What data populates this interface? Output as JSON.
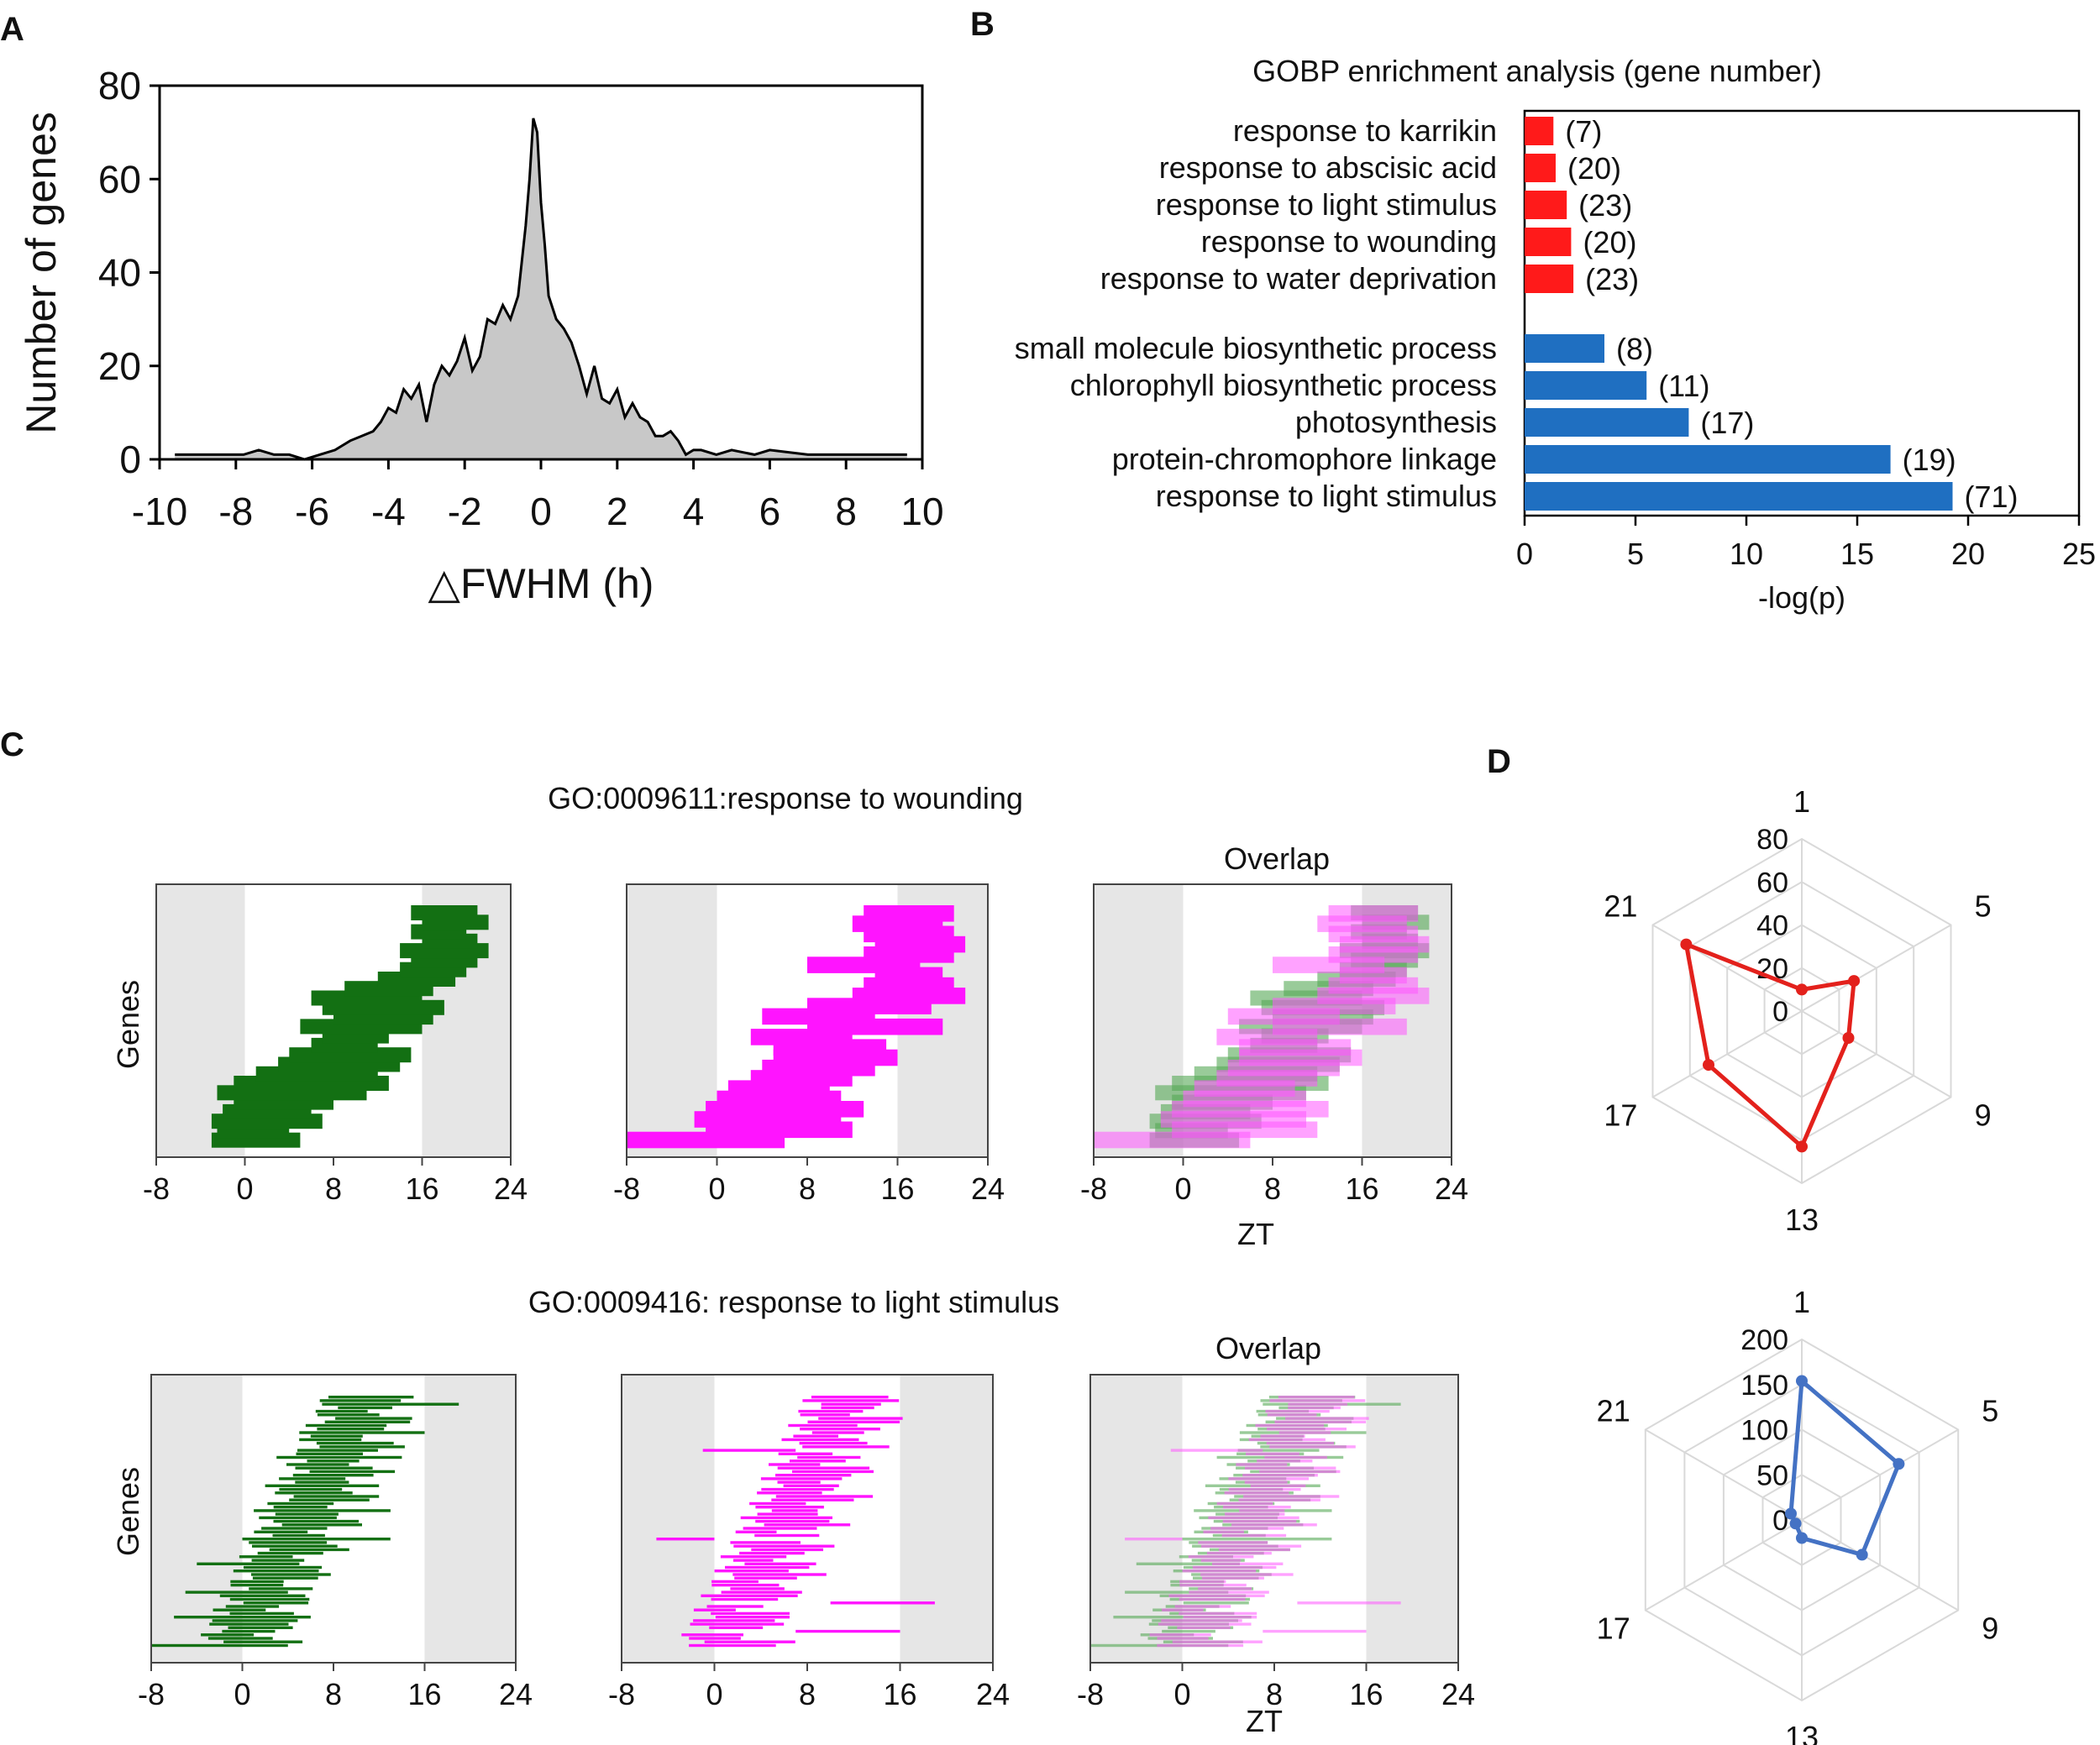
{
  "panels": {
    "A": "A",
    "B": "B",
    "C": "C",
    "D": "D"
  },
  "colors": {
    "red": "#ff1a1a",
    "blue": "#1f6fc1",
    "green": "#137013",
    "magenta": "#ff14ff",
    "overlap": "#7a5a7a",
    "shade": "#e6e6e6",
    "fill": "#c8c8c8",
    "radar_red": "#e3211c",
    "radar_blue": "#4472c4",
    "grid": "#d9d9d9"
  },
  "chart_data": [
    {
      "id": "A",
      "type": "area",
      "xlabel": "△FWHM (h)",
      "ylabel": "Number of genes",
      "xlim": [
        -10,
        10
      ],
      "ylim": [
        0,
        80
      ],
      "xticks": [
        "-10",
        "-8",
        "-6",
        "-4",
        "-2",
        "0",
        "2",
        "4",
        "6",
        "8",
        "10"
      ],
      "yticks": [
        "0",
        "20",
        "40",
        "60",
        "80"
      ],
      "x": [
        -9.6,
        -8.2,
        -7.8,
        -7.4,
        -7.0,
        -6.6,
        -6.2,
        -5.8,
        -5.4,
        -5.0,
        -4.7,
        -4.4,
        -4.2,
        -4.0,
        -3.8,
        -3.6,
        -3.4,
        -3.2,
        -3.0,
        -2.8,
        -2.6,
        -2.4,
        -2.2,
        -2.0,
        -1.8,
        -1.6,
        -1.4,
        -1.2,
        -1.0,
        -0.8,
        -0.6,
        -0.4,
        -0.3,
        -0.2,
        -0.1,
        0.0,
        0.1,
        0.2,
        0.4,
        0.6,
        0.8,
        1.0,
        1.2,
        1.4,
        1.6,
        1.8,
        2.0,
        2.2,
        2.4,
        2.6,
        2.8,
        3.0,
        3.2,
        3.4,
        3.6,
        3.8,
        4.0,
        4.2,
        4.6,
        5.0,
        5.6,
        6.0,
        7.0,
        7.5,
        8.0,
        8.5,
        9.0,
        9.6
      ],
      "y": [
        1,
        1,
        1,
        2,
        1,
        1,
        0,
        1,
        2,
        4,
        5,
        6,
        8,
        11,
        10,
        15,
        13,
        16,
        8,
        16,
        20,
        18,
        21,
        26,
        19,
        22,
        30,
        29,
        33,
        30,
        35,
        50,
        60,
        73,
        70,
        55,
        46,
        35,
        30,
        28,
        25,
        20,
        14,
        20,
        13,
        12,
        15,
        9,
        12,
        9,
        8,
        5,
        5,
        6,
        4,
        1,
        2,
        2,
        1,
        2,
        1,
        2,
        1,
        1,
        1,
        1,
        1,
        1
      ]
    },
    {
      "id": "B",
      "type": "bar",
      "title": "GOBP enrichment analysis  (gene number)",
      "xlabel": "-log(p)",
      "xlim": [
        0,
        25
      ],
      "xticks": [
        "0",
        "5",
        "10",
        "15",
        "20",
        "25"
      ],
      "series": [
        {
          "name": "red",
          "categories": [
            "response to karrikin",
            "response to abscisic acid",
            "response to light stimulus",
            "response to wounding",
            "response to water deprivation"
          ],
          "values": [
            1.3,
            1.4,
            1.9,
            2.1,
            2.2
          ],
          "labels": [
            "(7)",
            "(20)",
            "(23)",
            "(20)",
            "(23)"
          ]
        },
        {
          "name": "blue",
          "categories": [
            "small molecule biosynthetic process",
            "chlorophyll biosynthetic process",
            "photosynthesis",
            "protein-chromophore linkage",
            "response to light stimulus"
          ],
          "values": [
            3.6,
            5.5,
            7.4,
            16.5,
            19.3
          ],
          "labels": [
            "(8)",
            "(11)",
            "(17)",
            "(19)",
            "(71)"
          ]
        }
      ]
    },
    {
      "id": "C",
      "type": "bar",
      "rows": [
        {
          "title": "GO:0009611:response to wounding",
          "overlap_title": "Overlap",
          "genes": 20
        },
        {
          "title": "GO:0009416: response to light stimulus",
          "overlap_title": "Overlap",
          "genes": 71
        }
      ],
      "ylabel": "Genes",
      "xlabel": "ZT",
      "xlim": [
        -8,
        24
      ],
      "xticks": [
        "-8",
        "0",
        "8",
        "16",
        "24"
      ],
      "dark_periods": [
        [
          -8,
          0
        ],
        [
          16,
          24
        ]
      ],
      "bars_wounding_green": [
        [
          -3,
          5
        ],
        [
          -2.5,
          4
        ],
        [
          -3,
          7
        ],
        [
          -2,
          6
        ],
        [
          -1,
          8
        ],
        [
          -2.5,
          11
        ],
        [
          -1,
          13
        ],
        [
          1,
          12
        ],
        [
          3,
          14
        ],
        [
          4,
          15
        ],
        [
          6,
          12
        ],
        [
          7,
          13
        ],
        [
          5,
          16
        ],
        [
          8,
          17
        ],
        [
          7,
          18
        ],
        [
          6,
          16
        ],
        [
          9,
          17
        ],
        [
          12,
          19
        ],
        [
          14,
          20
        ],
        [
          15,
          21
        ],
        [
          14,
          22
        ],
        [
          16,
          21
        ],
        [
          15,
          20
        ],
        [
          16,
          22
        ],
        [
          15,
          21
        ]
      ],
      "bars_wounding_magenta": [
        [
          -8,
          6
        ],
        [
          -1,
          12
        ],
        [
          -2,
          11
        ],
        [
          -1,
          13
        ],
        [
          0,
          11
        ],
        [
          1,
          10
        ],
        [
          3,
          12
        ],
        [
          4,
          14
        ],
        [
          5,
          16
        ],
        [
          5,
          15
        ],
        [
          3,
          12
        ],
        [
          8,
          20
        ],
        [
          4,
          14
        ],
        [
          8,
          19
        ],
        [
          12,
          22
        ],
        [
          13,
          21
        ],
        [
          14,
          20
        ],
        [
          8,
          18
        ],
        [
          13,
          21
        ],
        [
          14,
          22
        ],
        [
          13,
          21
        ],
        [
          12,
          20
        ],
        [
          13,
          21
        ]
      ],
      "bars_light_green_span": [
        [
          -8,
          4
        ],
        [
          -6,
          6
        ],
        [
          -5,
          4
        ],
        [
          -4,
          5
        ],
        [
          0,
          13
        ],
        [
          1,
          13
        ],
        [
          2,
          12
        ],
        [
          3,
          14
        ],
        [
          5,
          16
        ],
        [
          7,
          19
        ]
      ],
      "bars_light_magenta_extra": [
        [
          10,
          19
        ],
        [
          7,
          16
        ],
        [
          -5,
          0
        ],
        [
          -1,
          7
        ]
      ]
    },
    {
      "id": "D",
      "type": "radar",
      "axes": [
        "1",
        "5",
        "9",
        "13",
        "17",
        "21"
      ],
      "charts": [
        {
          "name": "wounding",
          "ticks": [
            "0",
            "20",
            "40",
            "60",
            "80"
          ],
          "max": 80,
          "values": [
            10,
            28,
            25,
            63,
            50,
            62
          ]
        },
        {
          "name": "light",
          "ticks": [
            "0",
            "50",
            "100",
            "150",
            "200"
          ],
          "max": 200,
          "values": [
            154,
            124,
            77,
            20,
            8,
            14
          ]
        }
      ]
    }
  ]
}
